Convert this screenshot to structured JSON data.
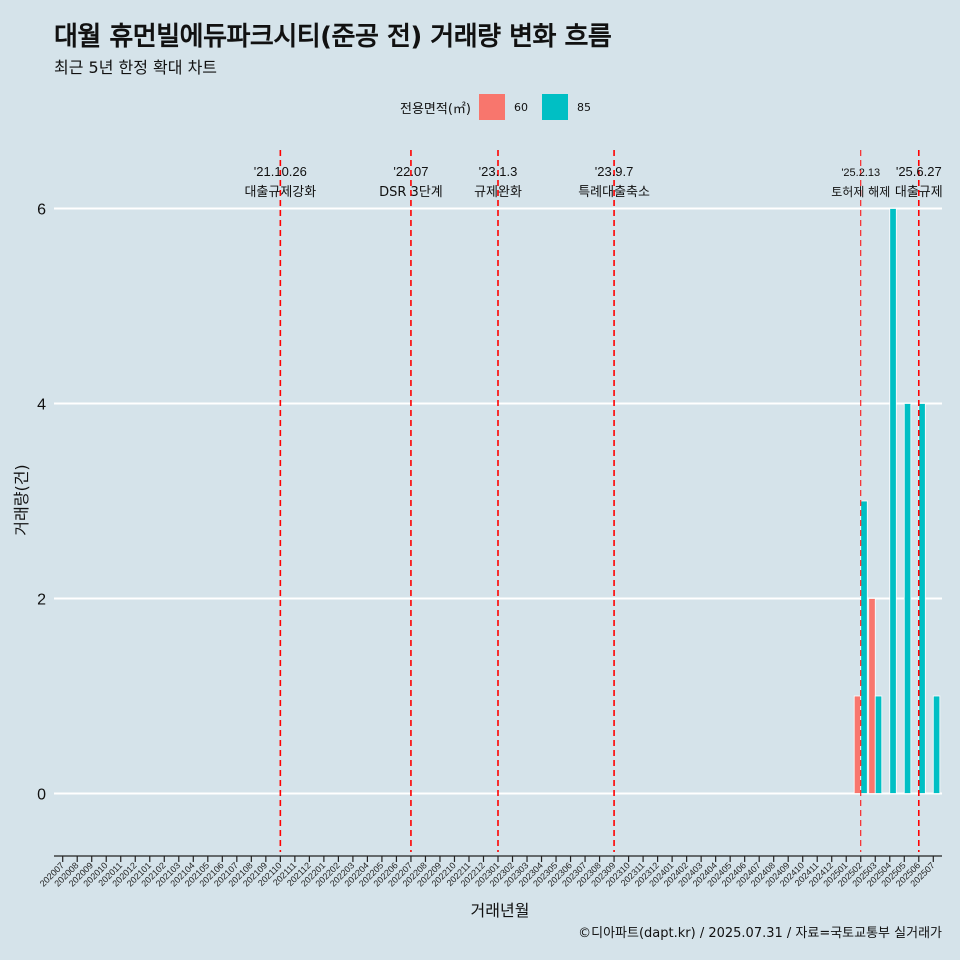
{
  "title": "대월 휴먼빌에듀파크시티(준공 전) 거래량 변화 흐름",
  "subtitle": "최근 5년 한정 확대 차트",
  "caption": "©디아파트(dapt.kr) / 2025.07.31 / 자료=국토교통부 실거래가",
  "colors": {
    "s60": "#f8766d",
    "s85": "#00bfc4",
    "background": "#d5e3ea",
    "event_line": "#ff0000"
  },
  "chart_data": {
    "type": "bar",
    "xlabel": "거래년월",
    "ylabel": "거래량(건)",
    "legend_title": "전용면적(㎡)",
    "legend_position": "top",
    "grid": true,
    "ylim": [
      -0.6,
      6.6
    ],
    "yticks": [
      0,
      2,
      4,
      6
    ],
    "categories": [
      "202007",
      "202008",
      "202009",
      "202010",
      "202011",
      "202012",
      "202101",
      "202102",
      "202103",
      "202104",
      "202105",
      "202106",
      "202107",
      "202108",
      "202109",
      "202110",
      "202111",
      "202112",
      "202201",
      "202202",
      "202203",
      "202204",
      "202205",
      "202206",
      "202207",
      "202208",
      "202209",
      "202210",
      "202211",
      "202212",
      "202301",
      "202302",
      "202303",
      "202304",
      "202305",
      "202306",
      "202307",
      "202308",
      "202309",
      "202310",
      "202311",
      "202312",
      "202401",
      "202402",
      "202403",
      "202404",
      "202405",
      "202406",
      "202407",
      "202408",
      "202409",
      "202410",
      "202411",
      "202412",
      "202501",
      "202502",
      "202503",
      "202504",
      "202505",
      "202506",
      "202507"
    ],
    "series": [
      {
        "name": "60",
        "color": "#f8766d",
        "points": [
          {
            "x": "202502",
            "y": 1
          },
          {
            "x": "202503",
            "y": 2
          }
        ]
      },
      {
        "name": "85",
        "color": "#00bfc4",
        "points": [
          {
            "x": "202502",
            "y": 3
          },
          {
            "x": "202503",
            "y": 1
          },
          {
            "x": "202504",
            "y": 6
          },
          {
            "x": "202505",
            "y": 4
          },
          {
            "x": "202506",
            "y": 4
          },
          {
            "x": "202507",
            "y": 1
          }
        ]
      }
    ],
    "events": [
      {
        "x": "202110",
        "date": "'21.10.26",
        "label": "대출규제강화"
      },
      {
        "x": "202207",
        "date": "'22.07",
        "label": "DSR 3단계"
      },
      {
        "x": "202301",
        "date": "'23.1.3",
        "label": "규제완화"
      },
      {
        "x": "202309",
        "date": "'23.9.7",
        "label": "특례대출축소"
      },
      {
        "x": "202502",
        "date": "'25.2.13",
        "label": "토허제 해제"
      },
      {
        "x": "202506",
        "date": "'25.6.27",
        "label": "대출규제"
      }
    ]
  }
}
